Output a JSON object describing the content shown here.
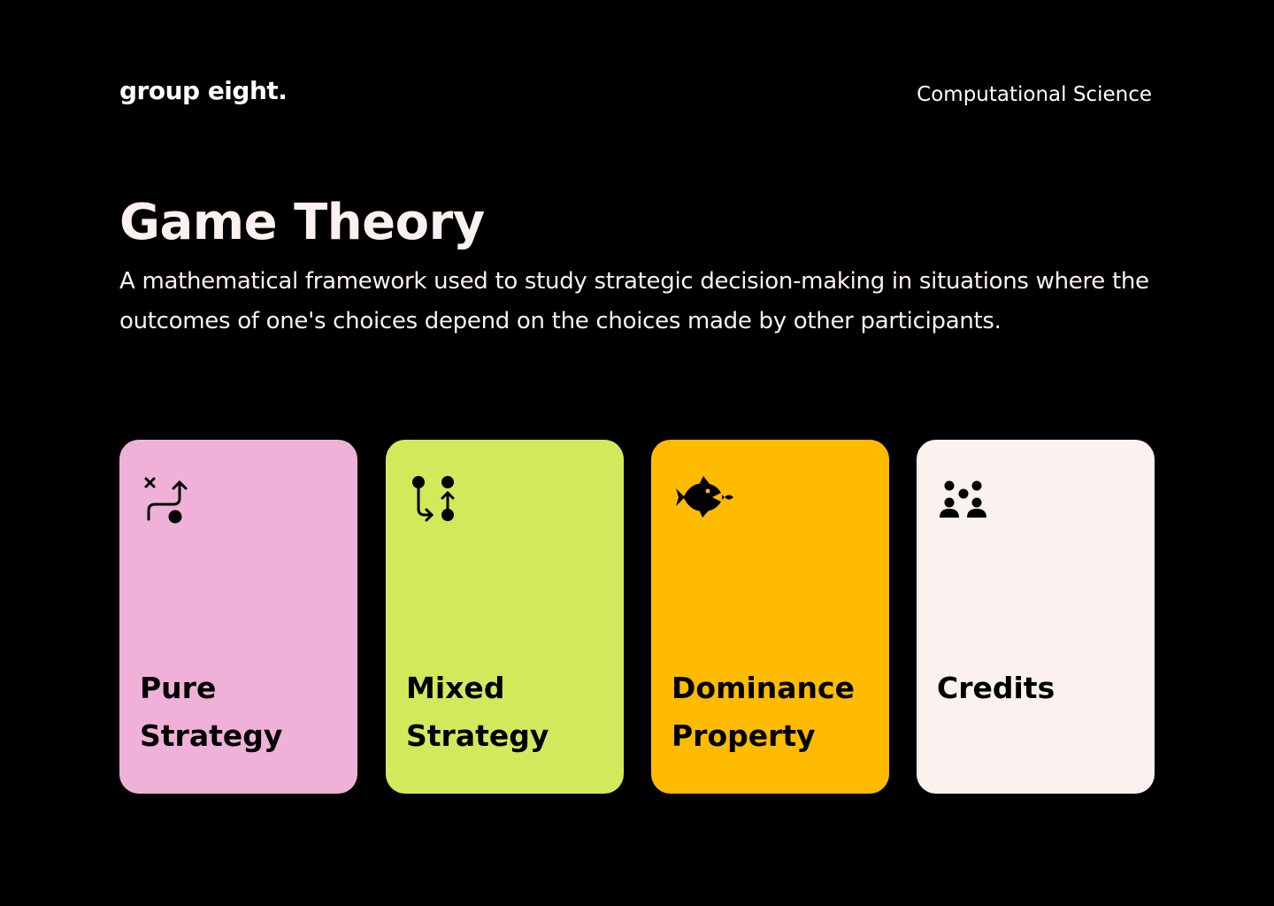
{
  "header": {
    "brand": "group eight.",
    "course": "Computational Science"
  },
  "hero": {
    "title": "Game Theory",
    "description": "A mathematical framework used to study strategic decision-making in situations where the outcomes of one's choices depend on the choices made by other participants."
  },
  "cards": [
    {
      "label_line1": "Pure",
      "label_line2": "Strategy",
      "color": "#efb1d8",
      "icon": "route-icon"
    },
    {
      "label_line1": "Mixed",
      "label_line2": "Strategy",
      "color": "#d3e95c",
      "icon": "branch-merge-icon"
    },
    {
      "label_line1": "Dominance",
      "label_line2": "Property",
      "color": "#ffbb00",
      "icon": "big-fish-eats-small-fish-icon"
    },
    {
      "label_line1": "Credits",
      "label_line2": "",
      "color": "#fbf1ee",
      "icon": "group-people-icon"
    }
  ]
}
